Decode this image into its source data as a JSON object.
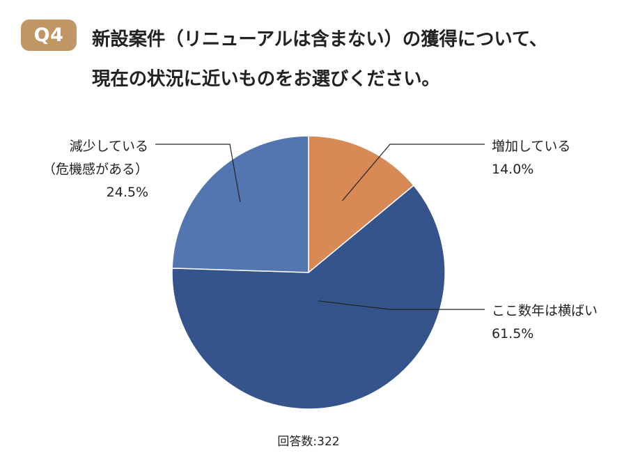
{
  "question": {
    "badge": "Q4",
    "title_line_1": "新設案件（リニューアルは含まない）の獲得について、",
    "title_line_2": "現在の状況に近いものをお選びください。",
    "badge_color": "#c09665"
  },
  "chart_data": {
    "type": "pie",
    "start_angle_deg": 0,
    "direction": "clockwise",
    "slices": [
      {
        "label_lines": [
          "増加している"
        ],
        "value_text": "14.0%",
        "value": 14.0,
        "color": "#d88a56"
      },
      {
        "label_lines": [
          "ここ数年は横ばい"
        ],
        "value_text": "61.5%",
        "value": 61.5,
        "color": "#34548b"
      },
      {
        "label_lines": [
          "減少している",
          "（危機感がある）"
        ],
        "value_text": "24.5%",
        "value": 24.5,
        "color": "#5476b0"
      }
    ],
    "footnote": "回答数:322"
  }
}
